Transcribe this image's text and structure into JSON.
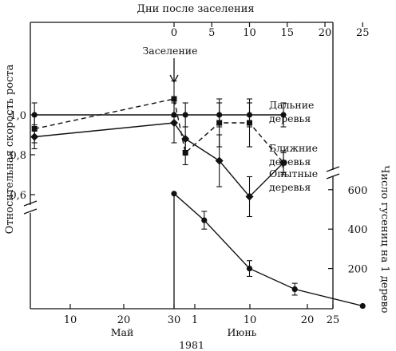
{
  "chart_data": [
    {
      "type": "line",
      "x_axis_bottom": {
        "ticks": [
          "10",
          "20",
          "30",
          "1",
          "10",
          "20",
          "25"
        ],
        "month_labels": [
          "Май",
          "Июнь"
        ],
        "year_label": "1981"
      },
      "x_axis_top": {
        "title": "Дни после заселения",
        "ticks": [
          "0",
          "5",
          "10",
          "15",
          "20",
          "25"
        ]
      },
      "y_axis_left": {
        "title": "Относительная скорость роста",
        "ticks": [
          "0,6",
          "0,8",
          "1,0"
        ],
        "ylim": [
          0.55,
          1.1
        ]
      },
      "annotation": "Заселение",
      "series": [
        {
          "name": "Дальние деревья",
          "style": "solid",
          "marker": "circle",
          "points": [
            {
              "day": -18.5,
              "y": 1.0,
              "err": 0.06
            },
            {
              "day": 0,
              "y": 1.0,
              "err": 0.0
            },
            {
              "day": 1.5,
              "y": 1.0,
              "err": 0.06
            },
            {
              "day": 6,
              "y": 1.0,
              "err": 0.06
            },
            {
              "day": 10,
              "y": 1.0,
              "err": 0.06
            },
            {
              "day": 14.5,
              "y": 1.0,
              "err": 0.06
            }
          ]
        },
        {
          "name": "Ближние деревья",
          "style": "dashed",
          "marker": "square",
          "points": [
            {
              "day": -18.5,
              "y": 0.93,
              "err": 0.07
            },
            {
              "day": 0,
              "y": 1.08,
              "err": 0.09
            },
            {
              "day": 1.5,
              "y": 0.81,
              "err": 0.06
            },
            {
              "day": 6,
              "y": 0.96,
              "err": 0.12
            },
            {
              "day": 10,
              "y": 0.96,
              "err": 0.12
            },
            {
              "day": 14.5,
              "y": 0.76,
              "err": 0.05
            }
          ]
        },
        {
          "name": "Опытные деревья",
          "style": "solid",
          "marker": "diamond",
          "points": [
            {
              "day": -18.5,
              "y": 0.89,
              "err": 0.06
            },
            {
              "day": 0,
              "y": 0.96,
              "err": 0.1
            },
            {
              "day": 1.5,
              "y": 0.88,
              "err": 0.06
            },
            {
              "day": 6,
              "y": 0.77,
              "err": 0.13
            },
            {
              "day": 10,
              "y": 0.59,
              "err": 0.1
            },
            {
              "day": 14.5,
              "y": 0.76,
              "err": 0.06
            }
          ]
        }
      ]
    },
    {
      "type": "line",
      "y_axis_right": {
        "title": "Число гусениц на 1 дерево",
        "ticks": [
          "200",
          "400",
          "600"
        ],
        "ylim": [
          0,
          600
        ]
      },
      "series": [
        {
          "name": "",
          "style": "solid",
          "marker": "circle",
          "points": [
            {
              "day": 0,
              "y": 580,
              "err": 0
            },
            {
              "day": 4,
              "y": 445,
              "err": 45
            },
            {
              "day": 10,
              "y": 200,
              "err": 40
            },
            {
              "day": 16,
              "y": 95,
              "err": 30
            },
            {
              "day": 25,
              "y": 10,
              "err": 0
            }
          ]
        }
      ]
    }
  ]
}
